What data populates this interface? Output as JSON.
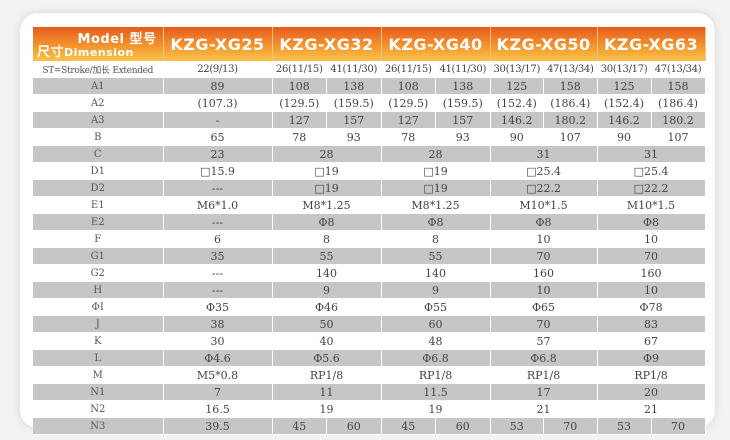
{
  "header": {
    "model_label": "Model 型号",
    "dimension_cn": "尺寸",
    "dimension_en": "Dimension",
    "models": [
      "KZG-XG25",
      "KZG-XG32",
      "KZG-XG40",
      "KZG-XG50",
      "KZG-XG63"
    ]
  },
  "colors": {
    "header_top": "#e65a1c",
    "header_bottom": "#fbc24a",
    "row_gray": "#c6c6c6"
  },
  "rows": [
    {
      "label": "ST=Stroke/加长 Extended",
      "values": [
        [
          "22(9/13)"
        ],
        [
          "26(11/15)",
          "41(11/30)"
        ],
        [
          "26(11/15)",
          "41(11/30)"
        ],
        [
          "30(13/17)",
          "47(13/34)"
        ],
        [
          "30(13/17)",
          "47(13/34)"
        ]
      ]
    },
    {
      "label": "A1",
      "values": [
        [
          "89"
        ],
        [
          "108",
          "138"
        ],
        [
          "108",
          "138"
        ],
        [
          "125",
          "158"
        ],
        [
          "125",
          "158"
        ]
      ]
    },
    {
      "label": "A2",
      "values": [
        [
          "(107.3)"
        ],
        [
          "(129.5)",
          "(159.5)"
        ],
        [
          "(129.5)",
          "(159.5)"
        ],
        [
          "(152.4)",
          "(186.4)"
        ],
        [
          "(152.4)",
          "(186.4)"
        ]
      ]
    },
    {
      "label": "A3",
      "values": [
        [
          "-"
        ],
        [
          "127",
          "157"
        ],
        [
          "127",
          "157"
        ],
        [
          "146.2",
          "180.2"
        ],
        [
          "146.2",
          "180.2"
        ]
      ]
    },
    {
      "label": "B",
      "values": [
        [
          "65"
        ],
        [
          "78",
          "93"
        ],
        [
          "78",
          "93"
        ],
        [
          "90",
          "107"
        ],
        [
          "90",
          "107"
        ]
      ]
    },
    {
      "label": "C",
      "values": [
        [
          "23"
        ],
        [
          "28"
        ],
        [
          "28"
        ],
        [
          "31"
        ],
        [
          "31"
        ]
      ]
    },
    {
      "label": "D1",
      "values": [
        [
          "□15.9"
        ],
        [
          "□19"
        ],
        [
          "□19"
        ],
        [
          "□25.4"
        ],
        [
          "□25.4"
        ]
      ]
    },
    {
      "label": "D2",
      "values": [
        [
          "---"
        ],
        [
          "□19"
        ],
        [
          "□19"
        ],
        [
          "□22.2"
        ],
        [
          "□22.2"
        ]
      ]
    },
    {
      "label": "E1",
      "values": [
        [
          "M6*1.0"
        ],
        [
          "M8*1.25"
        ],
        [
          "M8*1.25"
        ],
        [
          "M10*1.5"
        ],
        [
          "M10*1.5"
        ]
      ]
    },
    {
      "label": "E2",
      "values": [
        [
          "---"
        ],
        [
          "Φ8"
        ],
        [
          "Φ8"
        ],
        [
          "Φ8"
        ],
        [
          "Φ8"
        ]
      ]
    },
    {
      "label": "F",
      "values": [
        [
          "6"
        ],
        [
          "8"
        ],
        [
          "8"
        ],
        [
          "10"
        ],
        [
          "10"
        ]
      ]
    },
    {
      "label": "G1",
      "values": [
        [
          "35"
        ],
        [
          "55"
        ],
        [
          "55"
        ],
        [
          "70"
        ],
        [
          "70"
        ]
      ]
    },
    {
      "label": "G2",
      "values": [
        [
          "---"
        ],
        [
          "140"
        ],
        [
          "140"
        ],
        [
          "160"
        ],
        [
          "160"
        ]
      ]
    },
    {
      "label": "H",
      "values": [
        [
          "---"
        ],
        [
          "9"
        ],
        [
          "9"
        ],
        [
          "10"
        ],
        [
          "10"
        ]
      ]
    },
    {
      "label": "ΦI",
      "values": [
        [
          "Φ35"
        ],
        [
          "Φ46"
        ],
        [
          "Φ55"
        ],
        [
          "Φ65"
        ],
        [
          "Φ78"
        ]
      ]
    },
    {
      "label": "J",
      "values": [
        [
          "38"
        ],
        [
          "50"
        ],
        [
          "60"
        ],
        [
          "70"
        ],
        [
          "83"
        ]
      ]
    },
    {
      "label": "K",
      "values": [
        [
          "30"
        ],
        [
          "40"
        ],
        [
          "48"
        ],
        [
          "57"
        ],
        [
          "67"
        ]
      ]
    },
    {
      "label": "L",
      "values": [
        [
          "Φ4.6"
        ],
        [
          "Φ5.6"
        ],
        [
          "Φ6.8"
        ],
        [
          "Φ6.8"
        ],
        [
          "Φ9"
        ]
      ]
    },
    {
      "label": "M",
      "values": [
        [
          "M5*0.8"
        ],
        [
          "RP1/8"
        ],
        [
          "RP1/8"
        ],
        [
          "RP1/8"
        ],
        [
          "RP1/8"
        ]
      ]
    },
    {
      "label": "N1",
      "values": [
        [
          "7"
        ],
        [
          "11"
        ],
        [
          "11.5"
        ],
        [
          "17"
        ],
        [
          "20"
        ]
      ]
    },
    {
      "label": "N2",
      "values": [
        [
          "16.5"
        ],
        [
          "19"
        ],
        [
          "19"
        ],
        [
          "21"
        ],
        [
          "21"
        ]
      ]
    },
    {
      "label": "N3",
      "values": [
        [
          "39.5"
        ],
        [
          "45",
          "60"
        ],
        [
          "45",
          "60"
        ],
        [
          "53",
          "70"
        ],
        [
          "53",
          "70"
        ]
      ]
    }
  ]
}
